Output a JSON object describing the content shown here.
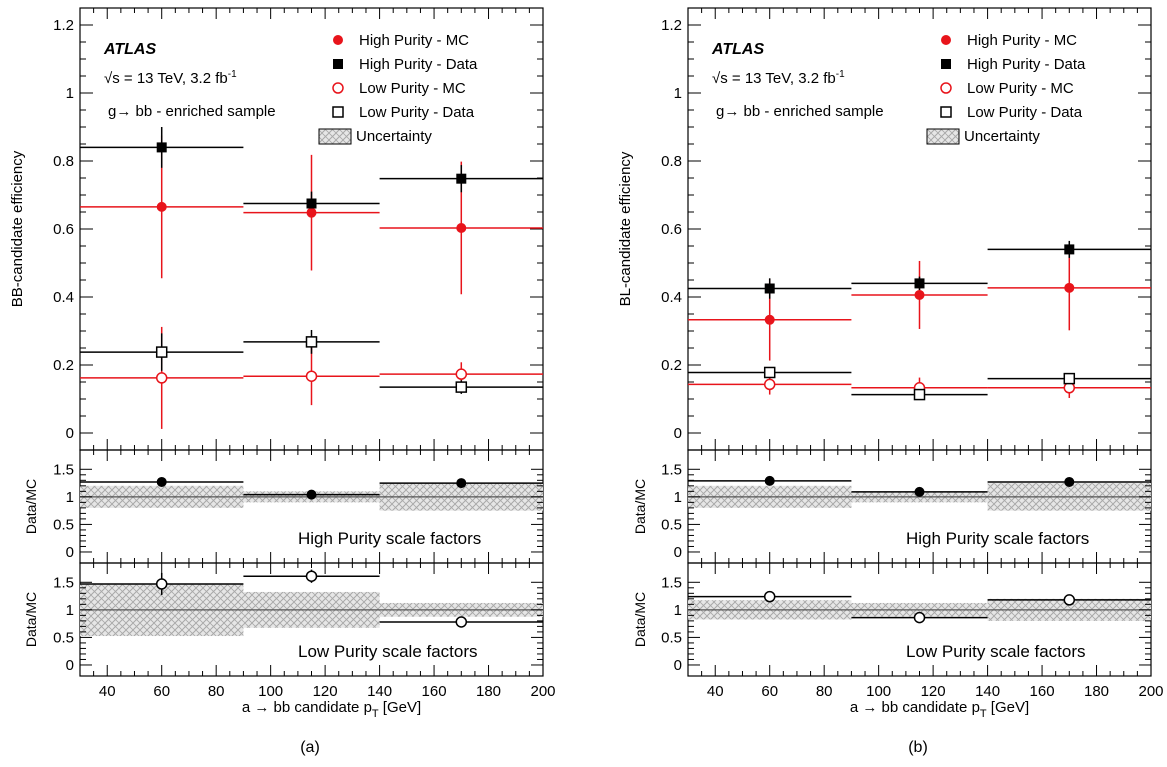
{
  "figure": {
    "x_axis_label": "a → bb candidate p",
    "x_axis_label_subscript": "T",
    "x_axis_label_unit": " [GeV]",
    "ratio_ylabel": "Data/MC",
    "x_ticks": [
      "40",
      "60",
      "80",
      "100",
      "120",
      "140",
      "160",
      "180",
      "200"
    ],
    "main_y_ticks": [
      "0",
      "0.2",
      "0.4",
      "0.6",
      "0.8",
      "1",
      "1.2"
    ],
    "ratio_y_ticks": [
      "0",
      "0.5",
      "1",
      "1.5"
    ],
    "atlas_label": "ATLAS",
    "energy_label_pre": "√s = 13 TeV, 3.2 fb",
    "energy_label_sup": "-1",
    "sample_label": "g→ bb - enriched sample",
    "legend": [
      {
        "label": "High Purity - MC",
        "marker": "filled-circle",
        "color": "#e8141b"
      },
      {
        "label": "High Purity - Data",
        "marker": "filled-square",
        "color": "#000000"
      },
      {
        "label": "Low Purity - MC",
        "marker": "open-circle",
        "color": "#e8141b"
      },
      {
        "label": "Low Purity - Data",
        "marker": "open-square",
        "color": "#000000"
      },
      {
        "label": "Uncertainty",
        "marker": "hatched-box",
        "color": "#a0a0a0"
      }
    ],
    "high_purity_label": "High Purity scale factors",
    "low_purity_label": "Low Purity scale factors",
    "colors": {
      "mc": "#e8141b",
      "data": "#000000",
      "band": "#a8a8a8"
    }
  },
  "chart_data": [
    {
      "type": "scatter",
      "caption": "(a)",
      "ylabel": "BB-candidate efficiency",
      "xlim": [
        30,
        200
      ],
      "ylim": [
        -0.05,
        1.25
      ],
      "bins": [
        [
          30,
          90
        ],
        [
          90,
          140
        ],
        [
          140,
          200
        ]
      ],
      "x": [
        60,
        115,
        170
      ],
      "series": [
        {
          "name": "High Purity - MC",
          "values": [
            0.665,
            0.648,
            0.603
          ],
          "err": [
            0.21,
            0.17,
            0.195
          ]
        },
        {
          "name": "High Purity - Data",
          "values": [
            0.84,
            0.675,
            0.748
          ],
          "err": [
            0.06,
            0.035,
            0.04
          ]
        },
        {
          "name": "Low Purity - MC",
          "values": [
            0.162,
            0.167,
            0.173
          ],
          "err": [
            0.15,
            0.085,
            0.035
          ]
        },
        {
          "name": "Low Purity - Data",
          "values": [
            0.238,
            0.268,
            0.135
          ],
          "err": [
            0.055,
            0.035,
            0.02
          ]
        }
      ],
      "ratio_high": {
        "ylim": [
          -0.2,
          1.85
        ],
        "values": [
          1.27,
          1.04,
          1.25
        ],
        "err": [
          0.04,
          0.04,
          0.04
        ],
        "band": [
          0.4,
          0.2,
          0.5
        ]
      },
      "ratio_low": {
        "ylim": [
          -0.2,
          1.85
        ],
        "values": [
          1.47,
          1.61,
          0.78
        ],
        "err": [
          0.2,
          0.12,
          0.06
        ],
        "band": [
          0.95,
          0.65,
          0.25
        ]
      }
    },
    {
      "type": "scatter",
      "caption": "(b)",
      "ylabel": "BL-candidate efficiency",
      "xlim": [
        30,
        200
      ],
      "ylim": [
        -0.05,
        1.25
      ],
      "bins": [
        [
          30,
          90
        ],
        [
          90,
          140
        ],
        [
          140,
          200
        ]
      ],
      "x": [
        60,
        115,
        170
      ],
      "series": [
        {
          "name": "High Purity - MC",
          "values": [
            0.333,
            0.406,
            0.427
          ],
          "err": [
            0.12,
            0.1,
            0.125
          ]
        },
        {
          "name": "High Purity - Data",
          "values": [
            0.425,
            0.44,
            0.54
          ],
          "err": [
            0.03,
            0.02,
            0.025
          ]
        },
        {
          "name": "Low Purity - MC",
          "values": [
            0.143,
            0.133,
            0.133
          ],
          "err": [
            0.03,
            0.03,
            0.03
          ]
        },
        {
          "name": "Low Purity - Data",
          "values": [
            0.178,
            0.113,
            0.16
          ],
          "err": [
            0.015,
            0.012,
            0.015
          ]
        }
      ],
      "ratio_high": {
        "ylim": [
          -0.2,
          1.85
        ],
        "values": [
          1.29,
          1.09,
          1.27
        ],
        "err": [
          0.04,
          0.04,
          0.04
        ],
        "band": [
          0.4,
          0.2,
          0.5
        ]
      },
      "ratio_low": {
        "ylim": [
          -0.2,
          1.85
        ],
        "values": [
          1.24,
          0.86,
          1.18
        ],
        "err": [
          0.04,
          0.04,
          0.04
        ],
        "band": [
          0.35,
          0.25,
          0.4
        ]
      }
    }
  ]
}
